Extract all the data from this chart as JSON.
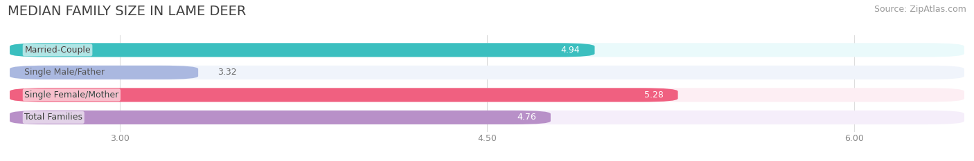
{
  "title": "MEDIAN FAMILY SIZE IN LAME DEER",
  "source": "Source: ZipAtlas.com",
  "categories": [
    "Married-Couple",
    "Single Male/Father",
    "Single Female/Mother",
    "Total Families"
  ],
  "values": [
    4.94,
    3.32,
    5.28,
    4.76
  ],
  "bar_colors": [
    "#3bbfbf",
    "#aab8e0",
    "#f06080",
    "#b890c8"
  ],
  "bar_bg_colors": [
    "#eafafb",
    "#f0f4fb",
    "#fdeef3",
    "#f5eefa"
  ],
  "label_text_colors": [
    "white",
    "#555555",
    "white",
    "white"
  ],
  "value_text_colors": [
    "white",
    "#666666",
    "white",
    "white"
  ],
  "value_inside": [
    true,
    false,
    true,
    true
  ],
  "xlim_min": 2.55,
  "xlim_max": 6.45,
  "data_min": 2.55,
  "xticks": [
    3.0,
    4.5,
    6.0
  ],
  "xtick_labels": [
    "3.00",
    "4.50",
    "6.00"
  ],
  "title_fontsize": 14,
  "source_fontsize": 9,
  "label_fontsize": 9,
  "value_fontsize": 9,
  "bar_height": 0.62,
  "figsize": [
    14.06,
    2.33
  ],
  "dpi": 100
}
